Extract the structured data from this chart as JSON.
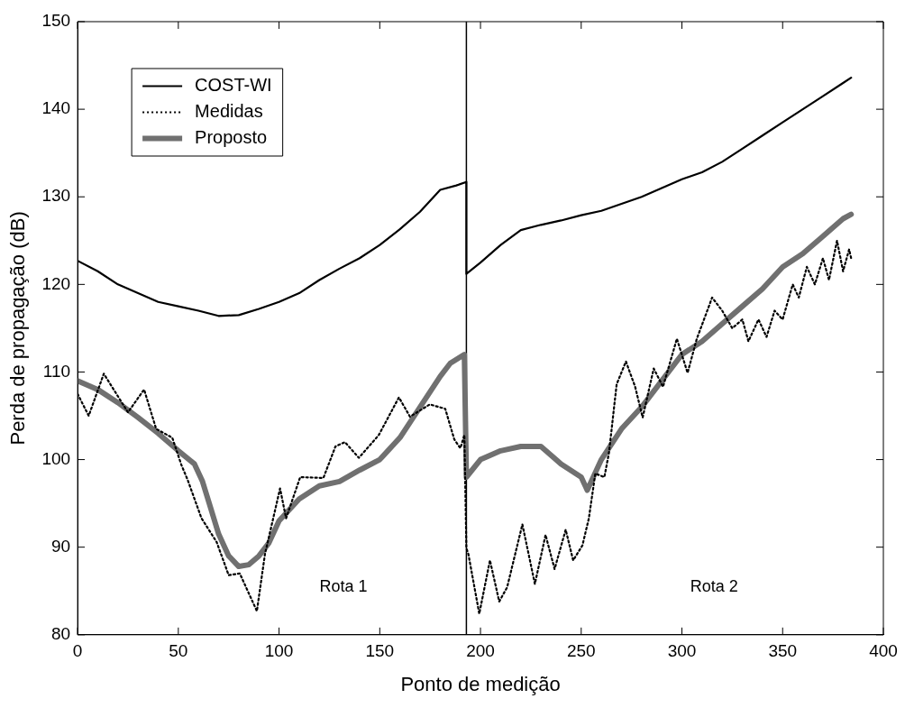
{
  "chart_data": {
    "type": "line",
    "xlabel": "Ponto de medição",
    "ylabel": "Perda de propagação (dB)",
    "xlim": [
      0,
      400
    ],
    "xticks": [
      0,
      50,
      100,
      150,
      200,
      250,
      300,
      350,
      400
    ],
    "ylim": [
      80,
      150
    ],
    "yticks": [
      80,
      90,
      100,
      110,
      120,
      130,
      140,
      150
    ],
    "grid": false,
    "legend": "top left",
    "marker": "none",
    "series": [
      {
        "name": "COST-WI",
        "color": "#000000",
        "line_style": "solid",
        "x": [
          0,
          10,
          20,
          30,
          40,
          50,
          60,
          70,
          80,
          90,
          100,
          110,
          120,
          130,
          140,
          150,
          160,
          170,
          180,
          188,
          193,
          193,
          200,
          210,
          220,
          230,
          240,
          250,
          260,
          270,
          280,
          290,
          300,
          310,
          320,
          330,
          340,
          350,
          360,
          370,
          380,
          384
        ],
        "values": [
          122.7,
          121.5,
          120,
          119,
          118,
          117.5,
          117,
          116.4,
          116.5,
          117.2,
          118,
          119,
          120.5,
          121.8,
          123,
          124.5,
          126.3,
          128.3,
          130.8,
          131.3,
          131.7,
          121.2,
          122.5,
          124.5,
          126.2,
          126.8,
          127.3,
          127.9,
          128.4,
          129.2,
          130,
          131,
          132,
          132.8,
          134,
          135.5,
          137,
          138.5,
          140,
          141.5,
          143,
          143.6
        ]
      },
      {
        "name": "Medidas",
        "color": "#000000",
        "line_style": "dotted",
        "x": [
          0,
          5.5,
          13,
          25,
          33,
          39,
          47,
          51.5,
          54.6,
          61.5,
          69,
          75,
          80.5,
          89,
          93,
          100.5,
          103.5,
          110.5,
          122,
          128,
          132.7,
          139.6,
          149.5,
          159.5,
          165,
          174.8,
          182.5,
          187,
          190,
          192,
          193,
          194,
          199.4,
          204.7,
          209.3,
          213.2,
          220.8,
          227,
          232.3,
          236.8,
          242.3,
          246,
          250.6,
          253.8,
          257,
          261.5,
          263.8,
          267.6,
          272.2,
          276.8,
          280.5,
          286,
          290.6,
          297.5,
          302.8,
          307.4,
          315,
          320,
          325,
          330,
          333,
          338,
          342,
          346,
          350,
          355,
          358,
          362,
          366,
          370,
          373,
          377,
          380,
          383,
          384
        ],
        "values": [
          107.5,
          105,
          109.8,
          105.4,
          108,
          103.5,
          102.5,
          99.4,
          97.7,
          93.3,
          90.6,
          86.8,
          87,
          82.7,
          89.2,
          96.7,
          93.3,
          98,
          97.9,
          101.5,
          102,
          100.2,
          102.8,
          107.1,
          104.9,
          106.3,
          105.8,
          102.3,
          101.3,
          102.8,
          89.9,
          89.2,
          82.4,
          88.5,
          83.8,
          85.4,
          92.6,
          85.8,
          91.4,
          87.5,
          92,
          88.5,
          90.2,
          93.3,
          98.4,
          98,
          100.8,
          108.6,
          111.2,
          108.3,
          104.8,
          110.4,
          108.3,
          113.8,
          109.9,
          113.8,
          118.5,
          117,
          115,
          116,
          113.5,
          116,
          114,
          117,
          116,
          120,
          118.5,
          122,
          120,
          123,
          120.5,
          125,
          121.5,
          124,
          123
        ]
      },
      {
        "name": "Proposto",
        "color": "#707070",
        "line_style": "solid",
        "x": [
          0,
          10,
          20,
          30,
          40,
          50,
          58,
          62,
          66,
          70,
          75,
          80,
          85,
          90,
          95,
          100,
          110,
          120,
          130,
          140,
          150,
          160,
          170,
          180,
          185,
          192,
          193,
          200,
          210,
          220,
          230,
          240,
          250,
          253,
          260,
          270,
          280,
          290,
          300,
          310,
          320,
          330,
          340,
          350,
          360,
          370,
          380,
          384
        ],
        "values": [
          109,
          108,
          106.5,
          104.8,
          103,
          101,
          99.5,
          97.5,
          94.5,
          91.5,
          89,
          87.8,
          88,
          89,
          90.5,
          93,
          95.5,
          97,
          97.5,
          98.8,
          100,
          102.5,
          106,
          109.5,
          111,
          112,
          98,
          100,
          101,
          101.5,
          101.5,
          99.5,
          98,
          96.5,
          100,
          103.5,
          106,
          109,
          112,
          113.5,
          115.5,
          117.5,
          119.5,
          122,
          123.5,
          125.5,
          127.5,
          128
        ]
      }
    ],
    "ref_lines": [
      {
        "axis": "x",
        "value": 193,
        "color": "#000000",
        "line_style": "solid"
      }
    ],
    "annotations": [
      "Rota 1",
      "Rota 2"
    ]
  }
}
